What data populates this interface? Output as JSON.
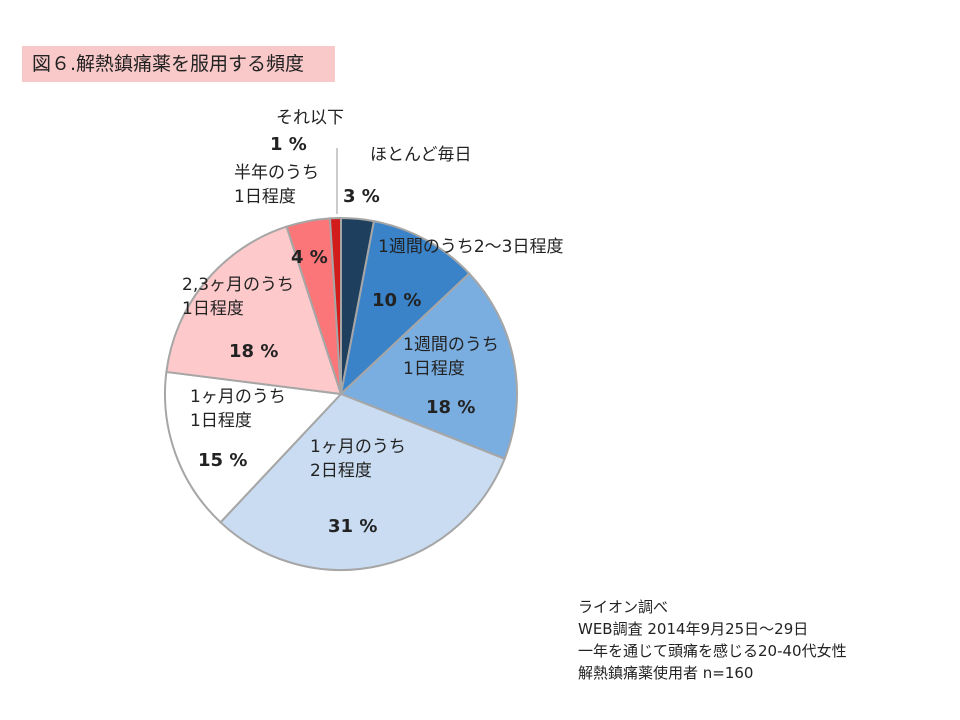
{
  "title": "図６.解熱鎮痛薬を服用する頻度",
  "chart_data": {
    "type": "pie",
    "slices": [
      {
        "label": [
          "ほとんど毎日"
        ],
        "value": 3,
        "pct_text": "3 %",
        "color": "#1f3f5f"
      },
      {
        "label": [
          "1週間のうち2～3日程度"
        ],
        "value": 10,
        "pct_text": "10 %",
        "color": "#3a83c9"
      },
      {
        "label": [
          "1週間のうち",
          "1日程度"
        ],
        "value": 18,
        "pct_text": "18 %",
        "color": "#7aaee0"
      },
      {
        "label": [
          "1ヶ月のうち",
          "2日程度"
        ],
        "value": 31,
        "pct_text": "31 %",
        "color": "#c9dcf1"
      },
      {
        "label": [
          "1ヶ月のうち",
          "1日程度"
        ],
        "value": 15,
        "pct_text": "15 %",
        "color": "#ffffff"
      },
      {
        "label": [
          "2,3ヶ月のうち",
          "1日程度"
        ],
        "value": 18,
        "pct_text": "18 %",
        "color": "#fec9cb"
      },
      {
        "label": [
          "半年のうち",
          "1日程度"
        ],
        "value": 4,
        "pct_text": "4 %",
        "color": "#fa7678"
      },
      {
        "label": [
          "それ以下"
        ],
        "value": 1,
        "pct_text": "1 %",
        "color": "#d21c1c"
      }
    ]
  },
  "source": {
    "lines": [
      "ライオン調べ",
      "WEB調査  2014年9月25日～29日",
      "一年を通じて頭痛を感じる20-40代女性",
      "解熱鎮痛薬使用者  n=160"
    ]
  }
}
